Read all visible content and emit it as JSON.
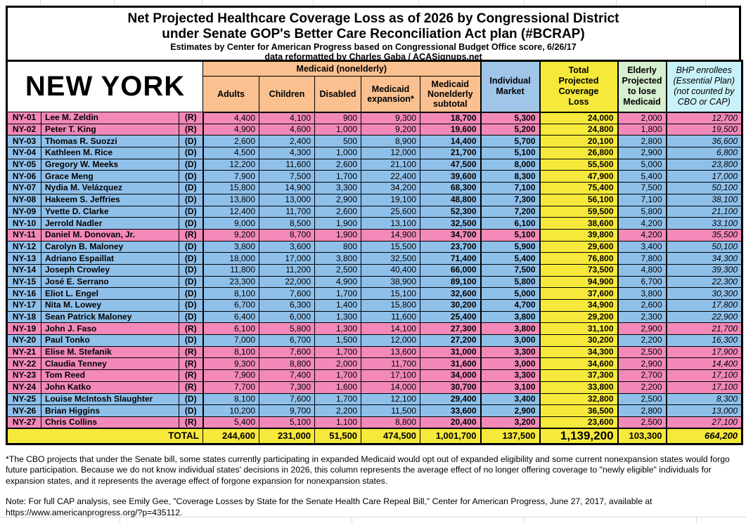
{
  "colors": {
    "republican_row": "#F289B9",
    "democrat_row": "#8FC0EA",
    "medicaid_header": "#FAC090",
    "individual_header": "#9FC5E8",
    "total_yellow": "#F6E93B",
    "elderly_header": "#D6EFCE",
    "bhp_header": "#C9F2F8"
  },
  "header": {
    "title_line1": "Net Projected Healthcare Coverage Loss as of 2026 by Congressional District",
    "title_line2": "under Senate GOP's Better Care Reconciliation Act plan (#BCRAP)",
    "subtitle_line1": "Estimates by Center for American Progress based on Congressional Budget Office score, 6/26/17",
    "subtitle_line2": "data reformatted by Charles Gaba / ACASignups.net"
  },
  "table": {
    "state_label": "NEW YORK",
    "medicaid_group_label": "Medicaid (nonelderly)",
    "columns": {
      "adults": "Adults",
      "children": "Children",
      "disabled": "Disabled",
      "expansion": "Medicaid\nexpansion*",
      "subtotal": "Medicaid\nNonelderly\nsubtotal",
      "individual": "Individual\nMarket",
      "total": "Total\nProjected\nCoverage\nLoss",
      "elderly": "Elderly\nProjected\nto lose\nMedicaid",
      "bhp": "BHP enrollees\n(Essential Plan)\n(not counted by\nCBO or CAP)"
    },
    "rows": [
      {
        "district": "NY-01",
        "name": "Lee M. Zeldin",
        "party": "(R)",
        "values": [
          "4,400",
          "4,100",
          "900",
          "9,300",
          "18,700",
          "5,300",
          "24,000",
          "2,000",
          "12,700"
        ]
      },
      {
        "district": "NY-02",
        "name": "Peter T. King",
        "party": "(R)",
        "values": [
          "4,900",
          "4,600",
          "1,000",
          "9,200",
          "19,600",
          "5,200",
          "24,800",
          "1,800",
          "19,500"
        ]
      },
      {
        "district": "NY-03",
        "name": "Thomas R. Suozzi",
        "party": "(D)",
        "values": [
          "2,600",
          "2,400",
          "500",
          "8,900",
          "14,400",
          "5,700",
          "20,100",
          "2,800",
          "36,600"
        ]
      },
      {
        "district": "NY-04",
        "name": "Kathleen M. Rice",
        "party": "(D)",
        "values": [
          "4,500",
          "4,300",
          "1,000",
          "12,000",
          "21,700",
          "5,100",
          "26,800",
          "2,900",
          "6,800"
        ]
      },
      {
        "district": "NY-05",
        "name": "Gregory W. Meeks",
        "party": "(D)",
        "values": [
          "12,200",
          "11,600",
          "2,600",
          "21,100",
          "47,500",
          "8,000",
          "55,500",
          "5,000",
          "23,800"
        ]
      },
      {
        "district": "NY-06",
        "name": "Grace Meng",
        "party": "(D)",
        "values": [
          "7,900",
          "7,500",
          "1,700",
          "22,400",
          "39,600",
          "8,300",
          "47,900",
          "5,400",
          "17,000"
        ]
      },
      {
        "district": "NY-07",
        "name": "Nydia M. Velázquez",
        "party": "(D)",
        "values": [
          "15,800",
          "14,900",
          "3,300",
          "34,200",
          "68,300",
          "7,100",
          "75,400",
          "7,500",
          "50,100"
        ]
      },
      {
        "district": "NY-08",
        "name": "Hakeem S. Jeffries",
        "party": "(D)",
        "values": [
          "13,800",
          "13,000",
          "2,900",
          "19,100",
          "48,800",
          "7,300",
          "56,100",
          "7,100",
          "38,100"
        ]
      },
      {
        "district": "NY-09",
        "name": "Yvette D. Clarke",
        "party": "(D)",
        "values": [
          "12,400",
          "11,700",
          "2,600",
          "25,600",
          "52,300",
          "7,200",
          "59,500",
          "5,800",
          "21,100"
        ]
      },
      {
        "district": "NY-10",
        "name": "Jerrold Nadler",
        "party": "(D)",
        "values": [
          "9,000",
          "8,500",
          "1,900",
          "13,100",
          "32,500",
          "6,100",
          "38,600",
          "4,200",
          "33,100"
        ]
      },
      {
        "district": "NY-11",
        "name": "Daniel M. Donovan, Jr.",
        "party": "(R)",
        "values": [
          "9,200",
          "8,700",
          "1,900",
          "14,900",
          "34,700",
          "5,100",
          "39,800",
          "4,200",
          "35,500"
        ]
      },
      {
        "district": "NY-12",
        "name": "Carolyn B. Maloney",
        "party": "(D)",
        "values": [
          "3,800",
          "3,600",
          "800",
          "15,500",
          "23,700",
          "5,900",
          "29,600",
          "3,400",
          "50,100"
        ]
      },
      {
        "district": "NY-13",
        "name": "Adriano Espaillat",
        "party": "(D)",
        "values": [
          "18,000",
          "17,000",
          "3,800",
          "32,500",
          "71,400",
          "5,400",
          "76,800",
          "7,800",
          "34,300"
        ]
      },
      {
        "district": "NY-14",
        "name": "Joseph Crowley",
        "party": "(D)",
        "values": [
          "11,800",
          "11,200",
          "2,500",
          "40,400",
          "66,000",
          "7,500",
          "73,500",
          "4,800",
          "39,300"
        ]
      },
      {
        "district": "NY-15",
        "name": "José E. Serrano",
        "party": "(D)",
        "values": [
          "23,300",
          "22,000",
          "4,900",
          "38,900",
          "89,100",
          "5,800",
          "94,900",
          "6,700",
          "22,300"
        ]
      },
      {
        "district": "NY-16",
        "name": "Eliot L. Engel",
        "party": "(D)",
        "values": [
          "8,100",
          "7,600",
          "1,700",
          "15,100",
          "32,600",
          "5,000",
          "37,600",
          "3,800",
          "30,300"
        ]
      },
      {
        "district": "NY-17",
        "name": "Nita M. Lowey",
        "party": "(D)",
        "values": [
          "6,700",
          "6,300",
          "1,400",
          "15,800",
          "30,200",
          "4,700",
          "34,900",
          "2,600",
          "17,800"
        ]
      },
      {
        "district": "NY-18",
        "name": "Sean Patrick Maloney",
        "party": "(D)",
        "values": [
          "6,400",
          "6,000",
          "1,300",
          "11,600",
          "25,400",
          "3,800",
          "29,200",
          "2,300",
          "22,900"
        ]
      },
      {
        "district": "NY-19",
        "name": "John J. Faso",
        "party": "(R)",
        "values": [
          "6,100",
          "5,800",
          "1,300",
          "14,100",
          "27,300",
          "3,800",
          "31,100",
          "2,900",
          "21,700"
        ]
      },
      {
        "district": "NY-20",
        "name": "Paul Tonko",
        "party": "(D)",
        "values": [
          "7,000",
          "6,700",
          "1,500",
          "12,000",
          "27,200",
          "3,000",
          "30,200",
          "2,200",
          "16,300"
        ]
      },
      {
        "district": "NY-21",
        "name": "Elise M. Stefanik",
        "party": "(R)",
        "values": [
          "8,100",
          "7,600",
          "1,700",
          "13,600",
          "31,000",
          "3,300",
          "34,300",
          "2,500",
          "17,900"
        ]
      },
      {
        "district": "NY-22",
        "name": "Claudia Tenney",
        "party": "(R)",
        "values": [
          "9,300",
          "8,800",
          "2,000",
          "11,700",
          "31,600",
          "3,000",
          "34,600",
          "2,900",
          "14,400"
        ]
      },
      {
        "district": "NY-23",
        "name": "Tom Reed",
        "party": "(R)",
        "values": [
          "7,900",
          "7,400",
          "1,700",
          "17,100",
          "34,000",
          "3,300",
          "37,300",
          "2,700",
          "17,100"
        ]
      },
      {
        "district": "NY-24",
        "name": "John Katko",
        "party": "(R)",
        "values": [
          "7,700",
          "7,300",
          "1,600",
          "14,000",
          "30,700",
          "3,100",
          "33,800",
          "2,200",
          "17,100"
        ]
      },
      {
        "district": "NY-25",
        "name": "Louise McIntosh Slaughter",
        "party": "(D)",
        "values": [
          "8,100",
          "7,600",
          "1,700",
          "12,100",
          "29,400",
          "3,400",
          "32,800",
          "2,500",
          "8,300"
        ]
      },
      {
        "district": "NY-26",
        "name": "Brian Higgins",
        "party": "(D)",
        "values": [
          "10,200",
          "9,700",
          "2,200",
          "11,500",
          "33,600",
          "2,900",
          "36,500",
          "2,800",
          "13,000"
        ]
      },
      {
        "district": "NY-27",
        "name": "Chris Collins",
        "party": "(R)",
        "values": [
          "5,400",
          "5,100",
          "1,100",
          "8,800",
          "20,400",
          "3,200",
          "23,600",
          "2,500",
          "27,100"
        ]
      }
    ],
    "total_row": {
      "label": "TOTAL",
      "values": [
        "244,600",
        "231,000",
        "51,500",
        "474,500",
        "1,001,700",
        "137,500",
        "1,139,200",
        "103,300",
        "664,200"
      ]
    }
  },
  "footnotes": {
    "asterisk_note": "*The CBO projects that under the Senate bill, some states currently participating in expanded Medicaid would opt out of expanded eligibility and some current nonexpansion states would forgo future participation. Because we do not know individual states' decisions in 2026, this column represents the average effect of no longer offering coverage to \"newly eligible\" individuals for expansion states, and it represents the average effect of forgone expansion for nonexpansion states.",
    "cap_note": "Note: For full CAP analysis, see Emily Gee, \"Coverage Losses by State for the Senate Health Care Repeal Bill,\" Center for American Progress, June 27, 2017, available at https://www.americanprogress.org/?p=435112."
  }
}
